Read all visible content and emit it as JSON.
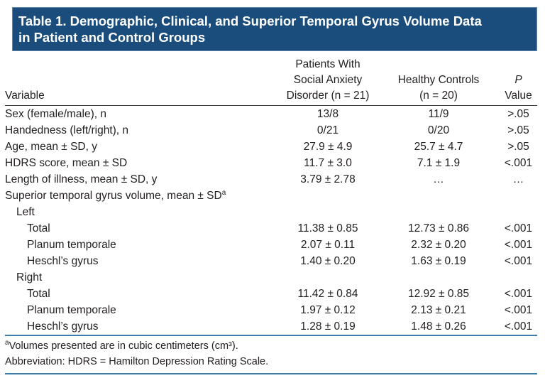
{
  "title_lines": [
    "Table 1. Demographic, Clinical, and Superior Temporal Gyrus Volume Data",
    "in Patient and Control Groups"
  ],
  "columns": {
    "variable": "Variable",
    "patients_lines": [
      "Patients With",
      "Social Anxiety",
      "Disorder (n = 21)"
    ],
    "controls_lines": [
      "Healthy Controls",
      "(n = 20)"
    ],
    "p_line1": "P",
    "p_line2": "Value"
  },
  "rows": [
    {
      "label": "Sex (female/male), n",
      "sup": "",
      "indent": 0,
      "patients": "13/8",
      "controls": "11/9",
      "p": ">.05"
    },
    {
      "label": "Handedness (left/right), n",
      "sup": "",
      "indent": 0,
      "patients": "0/21",
      "controls": "0/20",
      "p": ">.05"
    },
    {
      "label": "Age, mean ± SD, y",
      "sup": "",
      "indent": 0,
      "patients": "27.9 ± 4.9",
      "controls": "25.7 ± 4.7",
      "p": ">.05"
    },
    {
      "label": "HDRS score, mean ± SD",
      "sup": "",
      "indent": 0,
      "patients": "11.7 ± 3.0",
      "controls": "7.1 ± 1.9",
      "p": "<.001"
    },
    {
      "label": "Length of illness, mean ± SD, y",
      "sup": "",
      "indent": 0,
      "patients": "3.79 ± 2.78",
      "controls": "…",
      "p": "…"
    },
    {
      "label": "Superior temporal gyrus volume, mean ± SD",
      "sup": "a",
      "indent": 0,
      "patients": "",
      "controls": "",
      "p": ""
    },
    {
      "label": "Left",
      "sup": "",
      "indent": 1,
      "patients": "",
      "controls": "",
      "p": ""
    },
    {
      "label": "Total",
      "sup": "",
      "indent": 2,
      "patients": "11.38 ± 0.85",
      "controls": "12.73 ± 0.86",
      "p": "<.001"
    },
    {
      "label": "Planum temporale",
      "sup": "",
      "indent": 2,
      "patients": "2.07 ± 0.11",
      "controls": "2.32 ± 0.20",
      "p": "<.001"
    },
    {
      "label": "Heschl’s gyrus",
      "sup": "",
      "indent": 2,
      "patients": "1.40 ± 0.20",
      "controls": "1.63 ± 0.19",
      "p": "<.001"
    },
    {
      "label": "Right",
      "sup": "",
      "indent": 1,
      "patients": "",
      "controls": "",
      "p": ""
    },
    {
      "label": "Total",
      "sup": "",
      "indent": 2,
      "patients": "11.42 ± 0.84",
      "controls": "12.92 ± 0.85",
      "p": "<.001"
    },
    {
      "label": "Planum temporale",
      "sup": "",
      "indent": 2,
      "patients": "1.97 ± 0.12",
      "controls": "2.13 ± 0.21",
      "p": "<.001"
    },
    {
      "label": "Heschl’s gyrus",
      "sup": "",
      "indent": 2,
      "patients": "1.28 ± 0.19",
      "controls": "1.48 ± 0.26",
      "p": "<.001"
    }
  ],
  "footnotes": [
    {
      "marker": "a",
      "text": "Volumes presented are in cubic centimeters (cm³)."
    },
    {
      "marker": "",
      "text": "Abbreviation: HDRS = Hamilton Depression Rating Scale."
    }
  ],
  "colors": {
    "header_bg": "#1a4d7c",
    "header_border": "#6189ad",
    "rule_blue": "#3e7da9",
    "rule_dark": "#3b3b3b",
    "text": "#242021"
  }
}
